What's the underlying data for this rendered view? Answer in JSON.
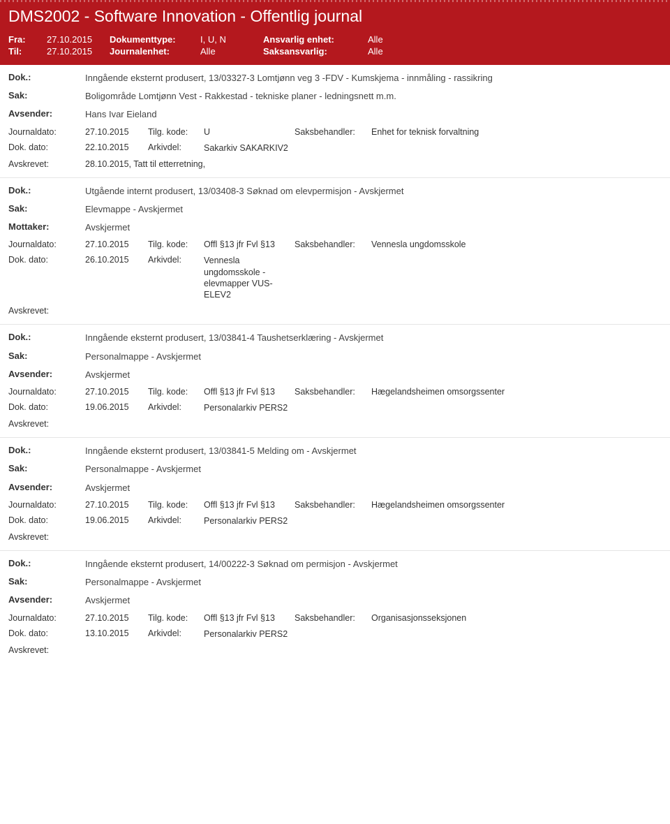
{
  "header": {
    "title": "DMS2002 - Software Innovation - Offentlig journal",
    "fra_label": "Fra:",
    "fra_value": "27.10.2015",
    "til_label": "Til:",
    "til_value": "27.10.2015",
    "doktype_label": "Dokumenttype:",
    "doktype_value": "I, U, N",
    "journalenhet_label": "Journalenhet:",
    "journalenhet_value": "Alle",
    "ansvarlig_label": "Ansvarlig enhet:",
    "ansvarlig_value": "Alle",
    "saksansvarlig_label": "Saksansvarlig:",
    "saksansvarlig_value": "Alle"
  },
  "labels": {
    "dok": "Dok.:",
    "sak": "Sak:",
    "avsender": "Avsender:",
    "mottaker": "Mottaker:",
    "journaldato": "Journaldato:",
    "tilgkode": "Tilg. kode:",
    "saksbehandler": "Saksbehandler:",
    "dokdato": "Dok. dato:",
    "arkivdel": "Arkivdel:",
    "avskrevet": "Avskrevet:"
  },
  "entries": [
    {
      "dok": "Inngående eksternt produsert, 13/03327-3 Lomtjønn veg 3 -FDV - Kumskjema - innmåling - rassikring",
      "sak": "Boligområde Lomtjønn Vest - Rakkestad - tekniske planer - ledningsnett m.m.",
      "party_label": "Avsender:",
      "party": "Hans Ivar Eieland",
      "journaldato": "27.10.2015",
      "tilgkode": "U",
      "saksbehandler": "Enhet for teknisk forvaltning",
      "dokdato": "22.10.2015",
      "arkivdel": "Sakarkiv SAKARKIV2",
      "avskrevet": "28.10.2015, Tatt til etterretning,"
    },
    {
      "dok": "Utgående internt produsert, 13/03408-3 Søknad om elevpermisjon - Avskjermet",
      "sak": "Elevmappe - Avskjermet",
      "party_label": "Mottaker:",
      "party": "Avskjermet",
      "journaldato": "27.10.2015",
      "tilgkode": "Offl §13 jfr Fvl §13",
      "saksbehandler": "Vennesla ungdomsskole",
      "dokdato": "26.10.2015",
      "arkivdel": "Vennesla ungdomsskole - elevmapper VUS-ELEV2",
      "avskrevet": ""
    },
    {
      "dok": "Inngående eksternt produsert, 13/03841-4 Taushetserklæring - Avskjermet",
      "sak": "Personalmappe - Avskjermet",
      "party_label": "Avsender:",
      "party": "Avskjermet",
      "journaldato": "27.10.2015",
      "tilgkode": "Offl §13 jfr Fvl §13",
      "saksbehandler": "Hægelandsheimen omsorgssenter",
      "dokdato": "19.06.2015",
      "arkivdel": "Personalarkiv PERS2",
      "avskrevet": ""
    },
    {
      "dok": "Inngående eksternt produsert, 13/03841-5 Melding om - Avskjermet",
      "sak": "Personalmappe - Avskjermet",
      "party_label": "Avsender:",
      "party": "Avskjermet",
      "journaldato": "27.10.2015",
      "tilgkode": "Offl §13 jfr Fvl §13",
      "saksbehandler": "Hægelandsheimen omsorgssenter",
      "dokdato": "19.06.2015",
      "arkivdel": "Personalarkiv PERS2",
      "avskrevet": ""
    },
    {
      "dok": "Inngående eksternt produsert, 14/00222-3 Søknad om permisjon - Avskjermet",
      "sak": "Personalmappe - Avskjermet",
      "party_label": "Avsender:",
      "party": "Avskjermet",
      "journaldato": "27.10.2015",
      "tilgkode": "Offl §13 jfr Fvl §13",
      "saksbehandler": "Organisasjonsseksjonen",
      "dokdato": "13.10.2015",
      "arkivdel": "Personalarkiv PERS2",
      "avskrevet": ""
    }
  ]
}
